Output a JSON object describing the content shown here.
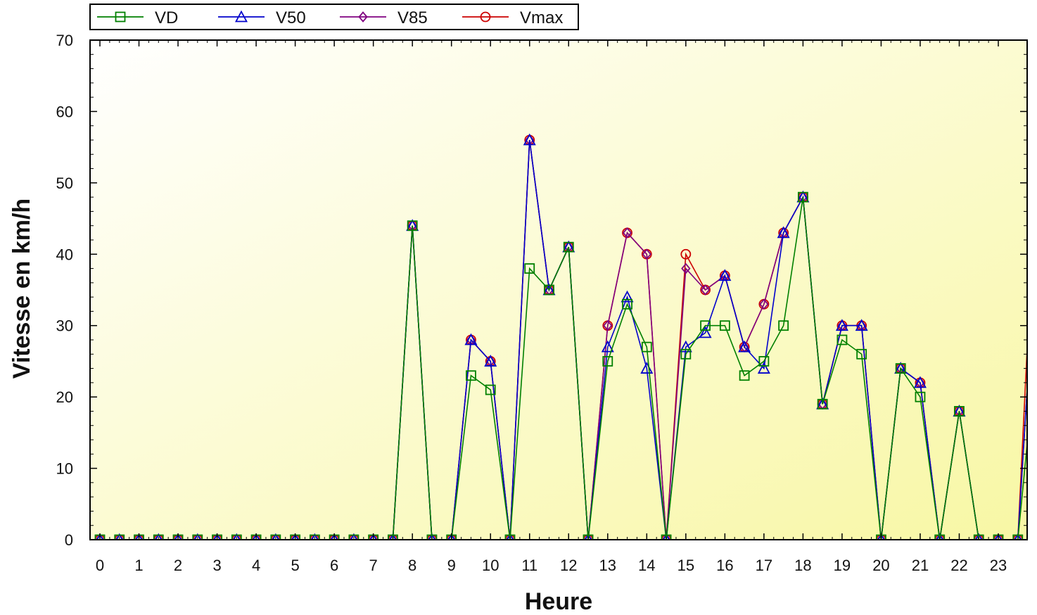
{
  "chart_data": {
    "type": "line",
    "xlabel": "Heure",
    "ylabel": "Vitesse en km/h",
    "xlim": [
      0,
      23.75
    ],
    "ylim": [
      0,
      70
    ],
    "xticks": [
      "0",
      "1",
      "2",
      "3",
      "4",
      "5",
      "6",
      "7",
      "8",
      "9",
      "10",
      "11",
      "12",
      "13",
      "14",
      "15",
      "16",
      "17",
      "18",
      "19",
      "20",
      "21",
      "22",
      "23"
    ],
    "yticks": [
      "0",
      "10",
      "20",
      "30",
      "40",
      "50",
      "60",
      "70"
    ],
    "grid": false,
    "legend_position": "top-left",
    "x": [
      0,
      0.5,
      1,
      1.5,
      2,
      2.5,
      3,
      3.5,
      4,
      4.5,
      5,
      5.5,
      6,
      6.5,
      7,
      7.5,
      8,
      8.5,
      9,
      9.5,
      10,
      10.5,
      11,
      11.5,
      12,
      12.5,
      13,
      13.5,
      14,
      14.5,
      15,
      15.5,
      16,
      16.5,
      17,
      17.5,
      18,
      18.5,
      19,
      19.5,
      20,
      20.5,
      21,
      21.5,
      22,
      22.5,
      23,
      23.5,
      23.75
    ],
    "series": [
      {
        "name": "VD",
        "color": "#008000",
        "marker": "square",
        "values": [
          0,
          0,
          0,
          0,
          0,
          0,
          0,
          0,
          0,
          0,
          0,
          0,
          0,
          0,
          0,
          0,
          44,
          0,
          0,
          23,
          21,
          0,
          38,
          35,
          41,
          0,
          25,
          33,
          27,
          0,
          26,
          30,
          30,
          23,
          25,
          30,
          48,
          19,
          28,
          26,
          0,
          24,
          20,
          0,
          18,
          0,
          0,
          0,
          14
        ]
      },
      {
        "name": "V50",
        "color": "#0000cc",
        "marker": "triangle",
        "values": [
          0,
          0,
          0,
          0,
          0,
          0,
          0,
          0,
          0,
          0,
          0,
          0,
          0,
          0,
          0,
          0,
          44,
          0,
          0,
          28,
          25,
          0,
          56,
          35,
          41,
          0,
          27,
          34,
          24,
          0,
          27,
          29,
          37,
          27,
          24,
          43,
          48,
          19,
          30,
          30,
          0,
          24,
          22,
          0,
          18,
          0,
          0,
          0,
          22
        ]
      },
      {
        "name": "V85",
        "color": "#800080",
        "marker": "diamond",
        "values": [
          0,
          0,
          0,
          0,
          0,
          0,
          0,
          0,
          0,
          0,
          0,
          0,
          0,
          0,
          0,
          0,
          44,
          0,
          0,
          28,
          25,
          0,
          56,
          35,
          41,
          0,
          30,
          43,
          40,
          0,
          38,
          35,
          37,
          27,
          33,
          43,
          48,
          19,
          30,
          30,
          0,
          24,
          22,
          0,
          18,
          0,
          0,
          0,
          22
        ]
      },
      {
        "name": "Vmax",
        "color": "#cc0000",
        "marker": "circle",
        "values": [
          0,
          0,
          0,
          0,
          0,
          0,
          0,
          0,
          0,
          0,
          0,
          0,
          0,
          0,
          0,
          0,
          44,
          0,
          0,
          28,
          25,
          0,
          56,
          35,
          41,
          0,
          30,
          43,
          40,
          0,
          40,
          35,
          37,
          27,
          33,
          43,
          48,
          19,
          30,
          30,
          0,
          24,
          22,
          0,
          18,
          0,
          0,
          0,
          28
        ]
      }
    ]
  }
}
